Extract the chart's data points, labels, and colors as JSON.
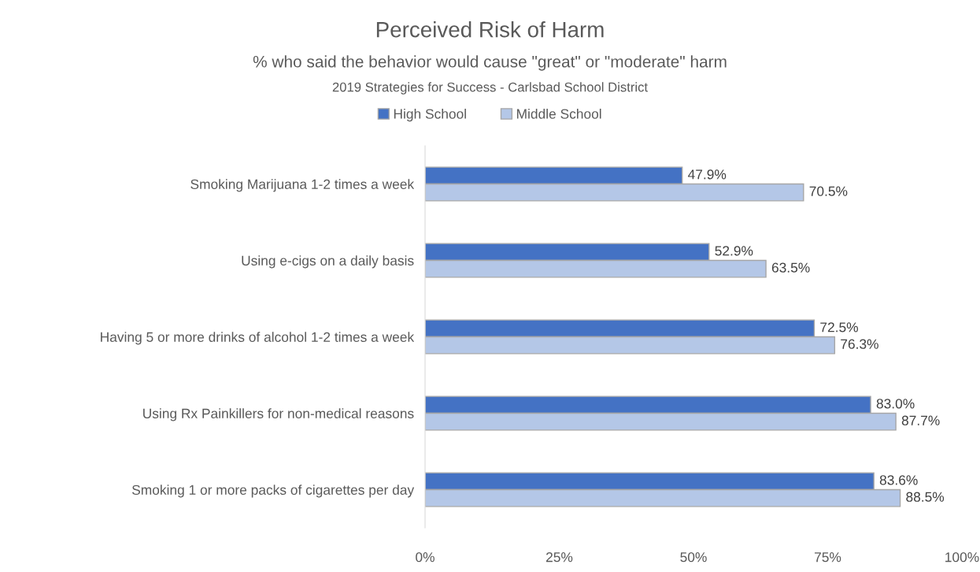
{
  "chart_data": {
    "type": "bar",
    "orientation": "horizontal",
    "title": "Perceived Risk of Harm",
    "subtitle": "% who said the behavior would cause \"great\" or \"moderate\" harm",
    "annotations": [
      "2019 Strategies for Success - Carlsbad School District"
    ],
    "categories": [
      "Smoking Marijuana 1-2 times a week",
      "Using e-cigs on a daily basis",
      "Having 5 or more drinks of alcohol 1-2 times a week",
      "Using Rx Painkillers for non-medical reasons",
      "Smoking 1 or more packs of cigarettes per day"
    ],
    "series": [
      {
        "name": "High School",
        "color": "#4472c4",
        "values": [
          47.9,
          52.9,
          72.5,
          83.0,
          83.6
        ],
        "value_labels": [
          "47.9%",
          "52.9%",
          "72.5%",
          "83.0%",
          "83.6%"
        ]
      },
      {
        "name": "Middle School",
        "color": "#b4c7e7",
        "values": [
          70.5,
          63.5,
          76.3,
          87.7,
          88.5
        ],
        "value_labels": [
          "70.5%",
          "63.5%",
          "76.3%",
          "87.7%",
          "88.5%"
        ]
      }
    ],
    "xlim": [
      0,
      100
    ],
    "xticks": [
      {
        "value": 0,
        "label": "0%"
      },
      {
        "value": 25,
        "label": "25%"
      },
      {
        "value": 50,
        "label": "50%"
      },
      {
        "value": 75,
        "label": "75%"
      },
      {
        "value": 100,
        "label": "100%"
      }
    ],
    "grid": false,
    "legend": "top"
  }
}
